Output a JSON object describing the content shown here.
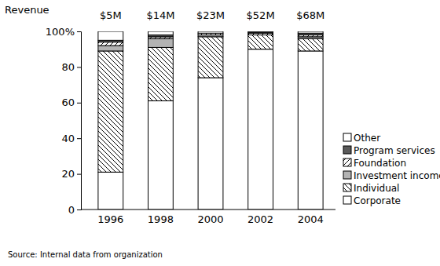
{
  "chart_data": {
    "type": "bar",
    "stacked": true,
    "y_label": "Revenue",
    "source": "Source: Internal data from organization",
    "categories": [
      "1996",
      "1998",
      "2000",
      "2002",
      "2004"
    ],
    "totals": [
      5,
      14,
      23,
      52,
      68
    ],
    "total_labels": [
      "$5M",
      "$14M",
      "$23M",
      "$52M",
      "$68M"
    ],
    "series": [
      {
        "name": "Corporate",
        "color": "#ffffff",
        "values": [
          21,
          61,
          74,
          90,
          89
        ]
      },
      {
        "name": "Individual",
        "color": "#ffffff",
        "values": [
          68,
          30,
          23,
          8,
          7
        ]
      },
      {
        "name": "Investment income",
        "color": "#b3b3b3",
        "values": [
          3,
          5,
          1,
          0,
          1
        ]
      },
      {
        "name": "Foundation",
        "color": "#ffffff",
        "values": [
          2,
          1,
          1,
          1,
          1
        ]
      },
      {
        "name": "Program services",
        "color": "#595959",
        "values": [
          1,
          1,
          0,
          0.5,
          1
        ]
      },
      {
        "name": "Other",
        "color": "#ffffff",
        "values": [
          5,
          2,
          1,
          0.5,
          1
        ]
      }
    ],
    "ylim": [
      0,
      100
    ],
    "yticks": [
      0,
      20,
      40,
      60,
      80,
      {
        "value": 100,
        "label": "100%"
      }
    ]
  }
}
